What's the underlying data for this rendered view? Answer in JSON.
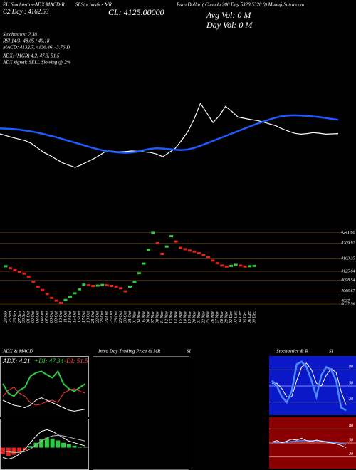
{
  "header": {
    "left1": "EU Stochastics-ADX MACD-R",
    "left2": "C2 Day : 4162.53",
    "mid1": "SI Stochastics MR",
    "close": "CL: 4125.00000",
    "right1": "Euro Dollar ( Canada 200 Day 5328 5328 0) MunafaSutra.com",
    "avgvol": "Avg Vol: 0  M",
    "dayvol": "Day Vol: 0  M",
    "stoch": "Stochastics: 2.38",
    "rsi": "RSI 14/3: 48.05 / 40.18",
    "macd": "MACD: 4132.7, 4136.46, -3.76  D",
    "adx": "ADX:                    (MGR) 4.2, 47.3, 51.5",
    "signal": "ADX  signal: SELL Slowing @ 2%"
  },
  "chart_data": {
    "type": "line",
    "categories": [
      "24 Sep",
      "25 Sep",
      "26 Sep",
      "27 Sep",
      "30 Sep",
      "01 Oct",
      "02 Oct",
      "03 Oct",
      "04 Oct",
      "07 Oct",
      "08 Oct",
      "09 Oct",
      "10 Oct",
      "11 Oct",
      "14 Oct",
      "15 Oct",
      "16 Oct",
      "17 Oct",
      "18 Oct",
      "21 Oct",
      "22 Oct",
      "23 Oct",
      "24 Oct",
      "25 Oct",
      "28 Oct",
      "29 Oct",
      "30 Oct",
      "31 Oct",
      "01 Nov",
      "04 Nov",
      "05 Nov",
      "06 Nov",
      "07 Nov",
      "08 Nov",
      "11 Nov",
      "12 Nov",
      "13 Nov",
      "14 Nov",
      "15 Nov",
      "18 Nov",
      "19 Nov",
      "20 Nov",
      "21 Nov",
      "22 Nov",
      "25 Nov",
      "26 Nov",
      "27 Nov",
      "28 Nov",
      "29 Nov",
      "02 Dec",
      "03 Dec",
      "04 Dec",
      "05 Dec",
      "06 Dec",
      "09 Dec"
    ],
    "series": [
      {
        "color": "#ffffff",
        "values": [
          4141,
          4135,
          4129,
          4124,
          4119,
          4110,
          4095,
          4080,
          4070,
          4058,
          4046,
          4038,
          4031,
          4040,
          4050,
          4060,
          4072,
          4086,
          4084,
          4082,
          4083,
          4085,
          4084,
          4082,
          4080,
          4075,
          4066,
          4080,
          4094,
          4120,
          4149,
          4190,
          4241,
          4210,
          4178,
          4200,
          4231,
          4215,
          4196,
          4192,
          4188,
          4185,
          4180,
          4174,
          4168,
          4158,
          4150,
          4143,
          4140,
          4142,
          4145,
          4143,
          4140,
          4141,
          4142
        ]
      },
      {
        "color": "#1e5bff",
        "values": [
          4159,
          4158,
          4157,
          4155,
          4152,
          4149,
          4145,
          4140,
          4135,
          4130,
          4124,
          4118,
          4112,
          4106,
          4100,
          4094,
          4089,
          4085,
          4082,
          4080,
          4079,
          4080,
          4083,
          4088,
          4092,
          4094,
          4093,
          4091,
          4089,
          4088,
          4090,
          4095,
          4102,
          4110,
          4118,
          4126,
          4134,
          4142,
          4150,
          4158,
          4166,
          4174,
          4181,
          4188,
          4194,
          4199,
          4201,
          4202,
          4201,
          4200,
          4198,
          4196,
          4193,
          4190,
          4187
        ]
      }
    ],
    "ylim": [
      4008,
      4253
    ],
    "box_ylim": [
      4000,
      4260
    ],
    "box_yticks": [
      {
        "value": 4241.6,
        "label": "4241.60"
      },
      4209.92,
      4163.35,
      4125.64,
      4098.54,
      4066.67,
      4037,
      4027.56
    ],
    "up_color": "#2ecc40",
    "down_color": "#e8231a",
    "grid_color": "#7a4d00"
  },
  "adx_panel": {
    "title": "ADX & MACD",
    "adx": "ADX: 4.21",
    "pdi": "+DI: 47.34",
    "mdi": "-DI: 51.5",
    "ylim": [
      0,
      100
    ],
    "plus_di": [
      63,
      44,
      38,
      50,
      56,
      78,
      85,
      88,
      81,
      75,
      88,
      63,
      53,
      48,
      56,
      63
    ],
    "minus_di": [
      38,
      50,
      56,
      44,
      38,
      25,
      20,
      22,
      28,
      30,
      25,
      44,
      50,
      53,
      48,
      44
    ],
    "adx_line": [
      30,
      25,
      20,
      18,
      15,
      20,
      30,
      35,
      30,
      25,
      20,
      15,
      10,
      8,
      10,
      12
    ],
    "macd_ylim": [
      -6,
      8
    ],
    "hist": [
      -2,
      -2.5,
      -2.2,
      -1.5,
      -0.8,
      0.5,
      1.5,
      2.5,
      3,
      2.8,
      2.2,
      1.5,
      1,
      0.6,
      0.3,
      0.1
    ],
    "macd": [
      -3,
      -3.5,
      -3,
      -2,
      -0.5,
      1.5,
      3.5,
      5,
      5.5,
      5,
      4,
      3,
      2,
      1.5,
      1,
      0.5
    ],
    "signal": [
      -1,
      -1.3,
      -1.5,
      -1.5,
      -1.2,
      -0.4,
      0.8,
      2,
      3,
      3.6,
      3.8,
      3.6,
      3.2,
      2.8,
      2.4,
      2
    ]
  },
  "intra_panel": {
    "title": "Intra Day Trading Price & MR",
    "suffix": "SI"
  },
  "stoch_panel": {
    "title": "Stochastics & R",
    "suffix": "SI",
    "ylim": [
      0,
      100
    ],
    "yticks": [
      80,
      50,
      20
    ],
    "k": [
      60,
      50,
      30,
      20,
      40,
      90,
      95,
      85,
      60,
      30,
      70,
      85,
      80,
      60,
      10,
      5
    ],
    "d": [
      55,
      55,
      45,
      30,
      30,
      60,
      85,
      92,
      80,
      55,
      50,
      70,
      82,
      75,
      40,
      15
    ],
    "rsi_ylim": [
      0,
      100
    ],
    "rsi_yticks": [
      80,
      50,
      20
    ],
    "rsi": [
      52,
      55,
      50,
      54,
      58,
      56,
      60,
      55,
      53,
      56,
      54,
      52,
      50,
      48,
      45,
      40
    ],
    "rsi_ma": [
      50,
      51,
      52,
      52,
      53,
      54,
      55,
      55,
      55,
      55,
      54,
      53,
      52,
      51,
      49,
      47
    ]
  }
}
